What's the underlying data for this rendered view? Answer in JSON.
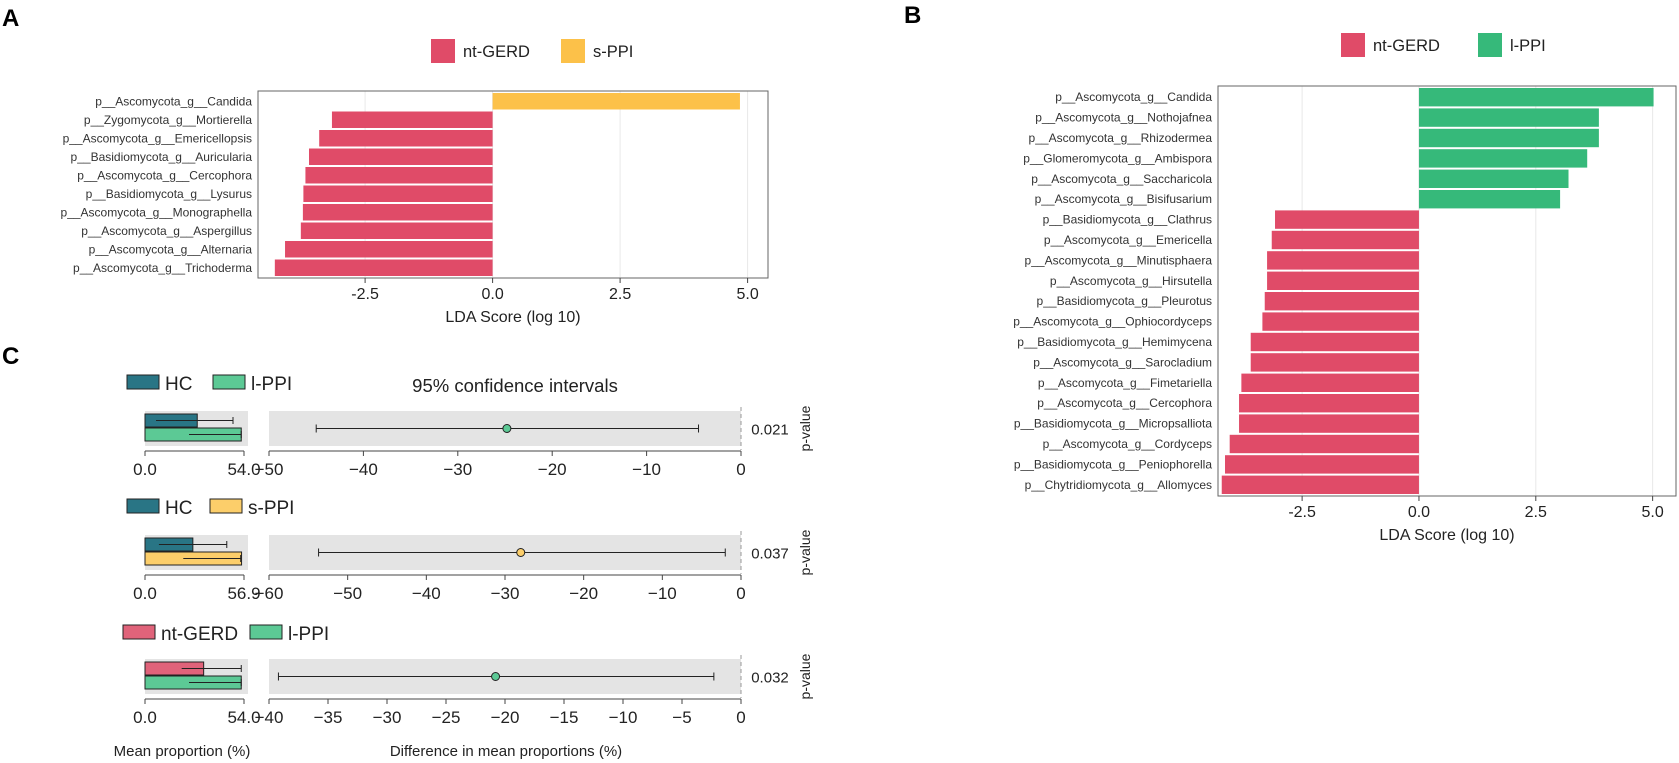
{
  "colors": {
    "ntgerd": "#e04b68",
    "sppi": "#fcc149",
    "lppi": "#36b97a",
    "hc": "#297585",
    "ntgerd_ci": "#e0637a",
    "lppi_ci": "#5cc995",
    "sppi_ci": "#fcce6a"
  },
  "chart_data": [
    {
      "panel": "A",
      "type": "bar",
      "orientation": "horizontal",
      "xlabel": "LDA Score (log 10)",
      "xlim": [
        -4.6,
        5.4
      ],
      "xticks": [
        -2.5,
        0.0,
        2.5,
        5.0
      ],
      "xtick_labels": [
        "-2.5",
        "0.0",
        "2.5",
        "5.0"
      ],
      "legend": [
        {
          "label": "nt-GERD",
          "color": "#e04b68"
        },
        {
          "label": "s-PPI",
          "color": "#fcc149"
        }
      ],
      "categories": [
        "p__Ascomycota_g__Candida",
        "p__Zygomycota_g__Mortierella",
        "p__Ascomycota_g__Emericellopsis",
        "p__Basidiomycota_g__Auricularia",
        "p__Ascomycota_g__Cercophora",
        "p__Basidiomycota_g__Lysurus",
        "p__Ascomycota_g__Monographella",
        "p__Ascomycota_g__Aspergillus",
        "p__Ascomycota_g__Alternaria",
        "p__Ascomycota_g__Trichoderma"
      ],
      "values": [
        4.85,
        -3.15,
        -3.4,
        -3.6,
        -3.67,
        -3.71,
        -3.72,
        -3.76,
        -4.07,
        -4.27
      ],
      "groups": [
        "s-PPI",
        "nt-GERD",
        "nt-GERD",
        "nt-GERD",
        "nt-GERD",
        "nt-GERD",
        "nt-GERD",
        "nt-GERD",
        "nt-GERD",
        "nt-GERD"
      ]
    },
    {
      "panel": "B",
      "type": "bar",
      "orientation": "horizontal",
      "xlabel": "LDA Score (log 10)",
      "xlim": [
        -4.3,
        5.5
      ],
      "xticks": [
        -2.5,
        0.0,
        2.5,
        5.0
      ],
      "xtick_labels": [
        "-2.5",
        "0.0",
        "2.5",
        "5.0"
      ],
      "legend": [
        {
          "label": "nt-GERD",
          "color": "#e04b68"
        },
        {
          "label": "l-PPI",
          "color": "#36b97a"
        }
      ],
      "categories": [
        "p__Ascomycota_g__Candida",
        "p__Ascomycota_g__Nothojafnea",
        "p__Ascomycota_g__Rhizodermea",
        "p__Glomeromycota_g__Ambispora",
        "p__Ascomycota_g__Saccharicola",
        "p__Ascomycota_g__Bisifusarium",
        "p__Basidiomycota_g__Clathrus",
        "p__Ascomycota_g__Emericella",
        "p__Ascomycota_g__Minutisphaera",
        "p__Ascomycota_g__Hirsutella",
        "p__Basidiomycota_g__Pleurotus",
        "p__Ascomycota_g__Ophiocordyceps",
        "p__Basidiomycota_g__Hemimycena",
        "p__Ascomycota_g__Sarocladium",
        "p__Ascomycota_g__Fimetariella",
        "p__Ascomycota_g__Cercophora",
        "p__Basidiomycota_g__Micropsalliota",
        "p__Ascomycota_g__Cordyceps",
        "p__Basidiomycota_g__Peniophorella",
        "p__Chytridiomycota_g__Allomyces"
      ],
      "values": [
        5.02,
        3.85,
        3.85,
        3.6,
        3.2,
        3.02,
        -3.08,
        -3.15,
        -3.25,
        -3.25,
        -3.3,
        -3.35,
        -3.6,
        -3.6,
        -3.8,
        -3.85,
        -3.85,
        -4.05,
        -4.15,
        -4.22
      ],
      "groups": [
        "l-PPI",
        "l-PPI",
        "l-PPI",
        "l-PPI",
        "l-PPI",
        "l-PPI",
        "nt-GERD",
        "nt-GERD",
        "nt-GERD",
        "nt-GERD",
        "nt-GERD",
        "nt-GERD",
        "nt-GERD",
        "nt-GERD",
        "nt-GERD",
        "nt-GERD",
        "nt-GERD",
        "nt-GERD",
        "nt-GERD",
        "nt-GERD"
      ]
    },
    {
      "panel": "C",
      "type": "bar+errorbar",
      "title": "95% confidence intervals",
      "mean_axis_label": "Mean proportion (%)",
      "diff_axis_label": "Difference in mean proportions (%)",
      "pvalue_label": "p-value",
      "comparisons": [
        {
          "groups": [
            "HC",
            "l-PPI"
          ],
          "group_colors": [
            "#297585",
            "#5cc995"
          ],
          "mean_max": 54.0,
          "mean_tick_labels": [
            "0.0",
            "54.0"
          ],
          "means": [
            28.5,
            52.5
          ],
          "mean_err": [
            [
              6,
              48
            ],
            [
              24,
              52.5
            ]
          ],
          "diff": -24.8,
          "ci": [
            -45.0,
            -4.5
          ],
          "xlim": [
            -50,
            0
          ],
          "xticks": [
            -50,
            -40,
            -30,
            -20,
            -10,
            0
          ],
          "xtick_labels": [
            "−50",
            "−40",
            "−30",
            "−20",
            "−10",
            "0"
          ],
          "point_color": "#5cc995",
          "p_value": "0.021"
        },
        {
          "groups": [
            "HC",
            "s-PPI"
          ],
          "group_colors": [
            "#297585",
            "#fcce6a"
          ],
          "mean_max": 56.9,
          "mean_tick_labels": [
            "0.0",
            "56.9"
          ],
          "means": [
            27.5,
            55.5
          ],
          "mean_err": [
            [
              8,
              47
            ],
            [
              22,
              55
            ]
          ],
          "diff": -28.0,
          "ci": [
            -53.7,
            -2.0
          ],
          "xlim": [
            -60,
            0
          ],
          "xticks": [
            -60,
            -50,
            -40,
            -30,
            -20,
            -10,
            0
          ],
          "xtick_labels": [
            "−60",
            "−50",
            "−40",
            "−30",
            "−20",
            "−10",
            "0"
          ],
          "point_color": "#fcce6a",
          "p_value": "0.037"
        },
        {
          "groups": [
            "nt-GERD",
            "l-PPI"
          ],
          "group_colors": [
            "#e0637a",
            "#5cc995"
          ],
          "mean_max": 54.0,
          "mean_tick_labels": [
            "0.0",
            "54.0"
          ],
          "means": [
            32.0,
            52.5
          ],
          "mean_err": [
            [
              20,
              52.5
            ],
            [
              24,
              52.5
            ]
          ],
          "diff": -20.8,
          "ci": [
            -39.2,
            -2.3
          ],
          "xlim": [
            -40,
            0
          ],
          "xticks": [
            -40,
            -35,
            -30,
            -25,
            -20,
            -15,
            -10,
            -5,
            0
          ],
          "xtick_labels": [
            "−40",
            "−35",
            "−30",
            "−25",
            "−20",
            "−15",
            "−10",
            "−5",
            "0"
          ],
          "point_color": "#5cc995",
          "p_value": "0.032"
        }
      ]
    }
  ],
  "panel_labels": {
    "a": "A",
    "b": "B",
    "c": "C"
  }
}
